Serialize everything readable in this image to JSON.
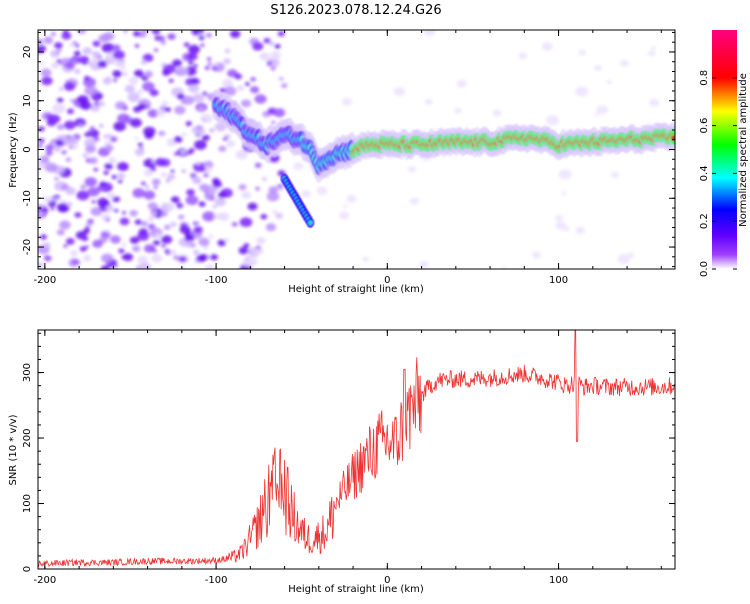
{
  "title": "S126.2023.078.12.24.G26",
  "chart_data": [
    {
      "type": "heatmap",
      "title": "S126.2023.078.12.24.G26",
      "xlabel": "Height of straight line (km)",
      "ylabel": "Frequency (Hz)",
      "xlim": [
        -204,
        168
      ],
      "ylim": [
        -24.5,
        24.5
      ],
      "xticks": [
        -200,
        -100,
        0,
        100
      ],
      "yticks": [
        -20,
        -10,
        0,
        10,
        20
      ],
      "colorbar": {
        "label": "Normalized spectral amplitude",
        "range": [
          0,
          1
        ],
        "ticks": [
          "0.0",
          "0.2",
          "0.4",
          "0.6",
          "0.8"
        ],
        "tick_values": [
          0,
          0.2,
          0.4,
          0.6,
          0.8
        ],
        "colors": [
          "#ffffff",
          "#8000ff",
          "#0000ff",
          "#00ffff",
          "#00ff00",
          "#ffff00",
          "#ff0000",
          "#ff0080"
        ]
      },
      "ridge": {
        "x": [
          -100,
          -90,
          -80,
          -70,
          -60,
          -50,
          -45,
          -40,
          -35,
          -30,
          -20,
          -10,
          0,
          20,
          40,
          60,
          80,
          90,
          100,
          120,
          140,
          168
        ],
        "y": [
          9,
          7,
          3,
          1,
          3,
          2,
          0,
          -3,
          -2,
          -1,
          0,
          1,
          1,
          1,
          1.5,
          1.5,
          2.5,
          2,
          1,
          1.5,
          2,
          2.5
        ]
      },
      "branch": {
        "x": [
          -60,
          -55,
          -50,
          -45
        ],
        "y": [
          -6,
          -9,
          -12,
          -15
        ]
      }
    },
    {
      "type": "line",
      "xlabel": "Height of straight line (km)",
      "ylabel": "SNR (10 * v/v)",
      "xlim": [
        -204,
        168
      ],
      "ylim": [
        0,
        365
      ],
      "xticks": [
        -200,
        -100,
        0,
        100
      ],
      "yticks": [
        0,
        100,
        200,
        300
      ],
      "line_color": "#ee3333",
      "x": [
        -204,
        -180,
        -160,
        -140,
        -120,
        -100,
        -90,
        -85,
        -80,
        -75,
        -70,
        -65,
        -60,
        -55,
        -50,
        -45,
        -40,
        -35,
        -30,
        -25,
        -20,
        -15,
        -10,
        -5,
        0,
        5,
        10,
        15,
        20,
        25,
        30,
        40,
        50,
        60,
        70,
        80,
        90,
        100,
        105,
        110,
        115,
        120,
        130,
        140,
        150,
        160,
        168
      ],
      "y": [
        8,
        10,
        10,
        12,
        12,
        13,
        18,
        25,
        45,
        70,
        100,
        125,
        115,
        80,
        55,
        45,
        50,
        60,
        100,
        120,
        140,
        160,
        175,
        190,
        195,
        190,
        225,
        245,
        265,
        280,
        288,
        290,
        290,
        292,
        295,
        298,
        292,
        285,
        280,
        285,
        278,
        280,
        278,
        278,
        278,
        278,
        280
      ]
    }
  ]
}
